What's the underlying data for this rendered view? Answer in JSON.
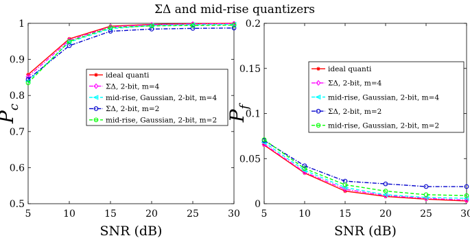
{
  "title": "ΣΔ and mid-rise quantizers",
  "chart_data": [
    {
      "type": "line",
      "xlabel": "SNR (dB)",
      "ylabel": "P",
      "ylabel_sub": "c",
      "xlim": [
        5,
        30
      ],
      "ylim": [
        0.5,
        1
      ],
      "x_ticks": [
        "5",
        "10",
        "15",
        "20",
        "25",
        "30"
      ],
      "y_ticks": [
        "0.5",
        "0.6",
        "0.7",
        "0.8",
        "0.9",
        "1"
      ],
      "grid": false,
      "legend_position": "center",
      "x": [
        5,
        10,
        15,
        20,
        25,
        30
      ],
      "series": [
        {
          "name": "ideal quanti",
          "color": "#ff0000",
          "dash": "solid",
          "marker": "asterisk",
          "values": [
            0.858,
            0.957,
            0.992,
            0.997,
            0.999,
            1.0
          ]
        },
        {
          "name": "ΣΔ, 2-bit, m=4",
          "color": "#ff00ff",
          "dash": "dashdot",
          "marker": "diamond",
          "values": [
            0.852,
            0.953,
            0.99,
            0.996,
            0.998,
            0.999
          ]
        },
        {
          "name": "mid-rise, Gaussian, 2-bit, m=4",
          "color": "#00ffff",
          "dash": "dashed",
          "marker": "triangle-left",
          "values": [
            0.84,
            0.948,
            0.985,
            0.994,
            0.996,
            0.997
          ]
        },
        {
          "name": "ΣΔ, 2-bit, m=2",
          "color": "#0000cc",
          "dash": "dashdot",
          "marker": "circle",
          "values": [
            0.845,
            0.938,
            0.978,
            0.984,
            0.986,
            0.987
          ]
        },
        {
          "name": "mid-rise, Gaussian, 2-bit, m=2",
          "color": "#00ff00",
          "dash": "dashed",
          "marker": "circle",
          "values": [
            0.835,
            0.95,
            0.988,
            0.993,
            0.994,
            0.995
          ]
        }
      ]
    },
    {
      "type": "line",
      "xlabel": "SNR (dB)",
      "ylabel": "P",
      "ylabel_sub": "f",
      "xlim": [
        5,
        30
      ],
      "ylim": [
        0,
        0.2
      ],
      "x_ticks": [
        "5",
        "10",
        "15",
        "20",
        "25",
        "30"
      ],
      "y_ticks": [
        "0",
        "0.05",
        "0.1",
        "0.15",
        "0.2"
      ],
      "grid": false,
      "legend_position": "top-right",
      "x": [
        5,
        10,
        15,
        20,
        25,
        30
      ],
      "series": [
        {
          "name": "ideal quanti",
          "color": "#ff0000",
          "dash": "solid",
          "marker": "asterisk",
          "values": [
            0.065,
            0.034,
            0.014,
            0.008,
            0.005,
            0.003
          ]
        },
        {
          "name": "ΣΔ, 2-bit, m=4",
          "color": "#ff00ff",
          "dash": "dashdot",
          "marker": "diamond",
          "values": [
            0.066,
            0.035,
            0.016,
            0.009,
            0.006,
            0.004
          ]
        },
        {
          "name": "mid-rise, Gaussian, 2-bit, m=4",
          "color": "#00ffff",
          "dash": "dashed",
          "marker": "triangle-left",
          "values": [
            0.068,
            0.037,
            0.018,
            0.01,
            0.007,
            0.006
          ]
        },
        {
          "name": "ΣΔ, 2-bit, m=2",
          "color": "#0000cc",
          "dash": "dashdot",
          "marker": "circle",
          "values": [
            0.07,
            0.042,
            0.025,
            0.022,
            0.019,
            0.019
          ]
        },
        {
          "name": "mid-rise, Gaussian, 2-bit, m=2",
          "color": "#00ff00",
          "dash": "dashed",
          "marker": "circle",
          "values": [
            0.071,
            0.039,
            0.021,
            0.014,
            0.01,
            0.009
          ]
        }
      ]
    }
  ]
}
